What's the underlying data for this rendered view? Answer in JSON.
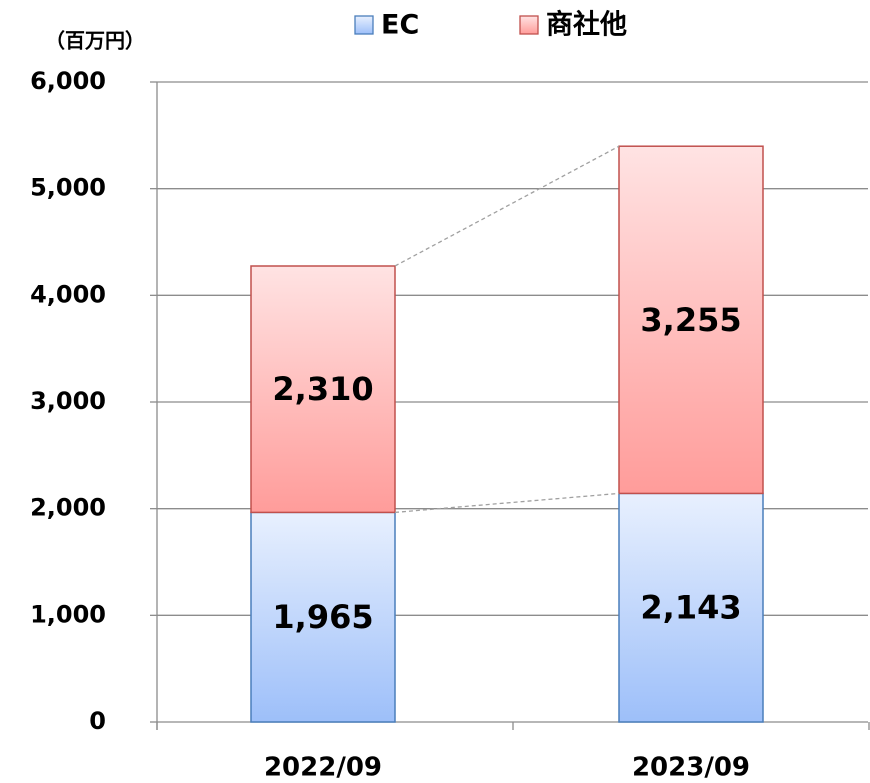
{
  "chart_data": {
    "type": "stacked_bar",
    "y_axis_label": "（百万円）",
    "categories": [
      "2022/09",
      "2023/09"
    ],
    "series": [
      {
        "name": "EC",
        "color": "#4a7ebb",
        "values": [
          1965,
          2143
        ],
        "value_labels": [
          "1,965",
          "2,143"
        ]
      },
      {
        "name": "商社他",
        "color": "#c0504d",
        "values": [
          2310,
          3255
        ],
        "value_labels": [
          "2,310",
          "3,255"
        ]
      }
    ],
    "ylim": [
      0,
      6000
    ],
    "yticks": [
      0,
      {
        "value": 1000,
        "label": "1,000"
      },
      {
        "value": 2000,
        "label": "2,000"
      },
      {
        "value": 3000,
        "label": "3,000"
      },
      {
        "value": 4000,
        "label": "4,000"
      },
      {
        "value": 5000,
        "label": "5,000"
      },
      {
        "value": 6000,
        "label": "6,000"
      }
    ],
    "grid": true,
    "legend": "top"
  }
}
